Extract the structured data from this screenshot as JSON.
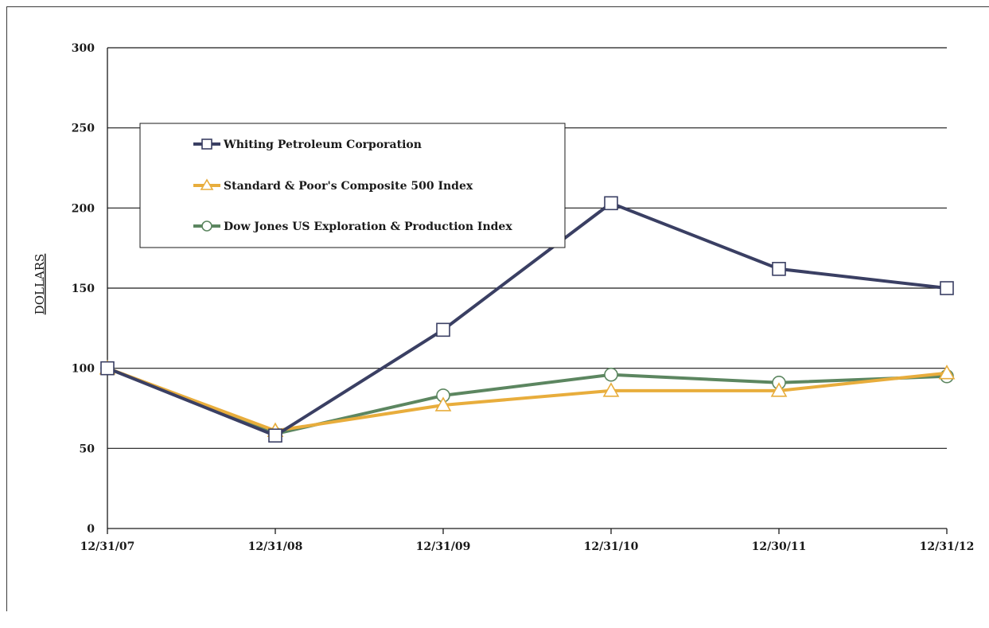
{
  "chart_data": {
    "type": "line",
    "title": "",
    "xlabel": "",
    "ylabel": "DOLLARS",
    "categories": [
      "12/31/07",
      "12/31/08",
      "12/31/09",
      "12/31/10",
      "12/30/11",
      "12/31/12"
    ],
    "ylim": [
      0,
      300
    ],
    "yticks": [
      0,
      50,
      100,
      150,
      200,
      250,
      300
    ],
    "grid": true,
    "legend_position": "upper-left",
    "series": [
      {
        "name": "Whiting Petroleum Corporation",
        "values": [
          100,
          58,
          124,
          203,
          162,
          150
        ],
        "color": "#3a3f63",
        "marker": "square"
      },
      {
        "name": "Standard & Poor's Composite 500 Index",
        "values": [
          100,
          61,
          77,
          86,
          86,
          97
        ],
        "color": "#e8ad3c",
        "marker": "triangle"
      },
      {
        "name": "Dow Jones US Exploration & Production Index",
        "values": [
          100,
          59,
          83,
          96,
          91,
          95
        ],
        "color": "#5c8660",
        "marker": "circle"
      }
    ]
  }
}
